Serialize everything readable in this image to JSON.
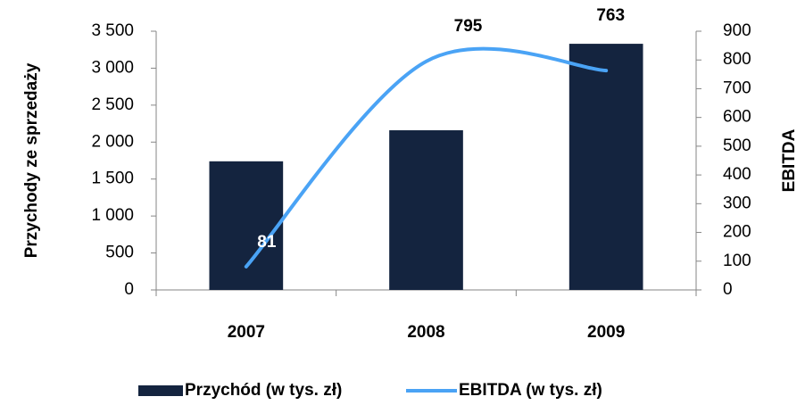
{
  "chart_data": {
    "type": "bar_line",
    "categories": [
      "2007",
      "2008",
      "2009"
    ],
    "series": [
      {
        "name": "Przychód (w tys. zł)",
        "color": "#14243f",
        "type": "bar",
        "values": [
          1740,
          2160,
          3330
        ]
      },
      {
        "name": "EBITDA (w tys. zł)",
        "color": "#4aa3f5",
        "type": "line",
        "axis": "y2",
        "values": [
          81,
          795,
          763
        ],
        "value_labels_shown": true
      }
    ],
    "ylabel": "Przychody ze sprzedaży",
    "y2label": "EBITDA",
    "ylim": [
      0,
      3500
    ],
    "yticks": [
      0,
      500,
      {
        "value": 1000,
        "label": "1 000"
      },
      {
        "value": 1500,
        "label": "1 500"
      },
      {
        "value": 2000,
        "label": "2 000"
      },
      {
        "value": 2500,
        "label": "2 500"
      },
      {
        "value": 3000,
        "label": "3 000"
      },
      {
        "value": 3500,
        "label": "3 500"
      }
    ],
    "y2lim": [
      0,
      900
    ],
    "y2ticks": [
      0,
      100,
      200,
      300,
      400,
      500,
      600,
      700,
      800,
      900
    ],
    "legend": "bottom"
  }
}
